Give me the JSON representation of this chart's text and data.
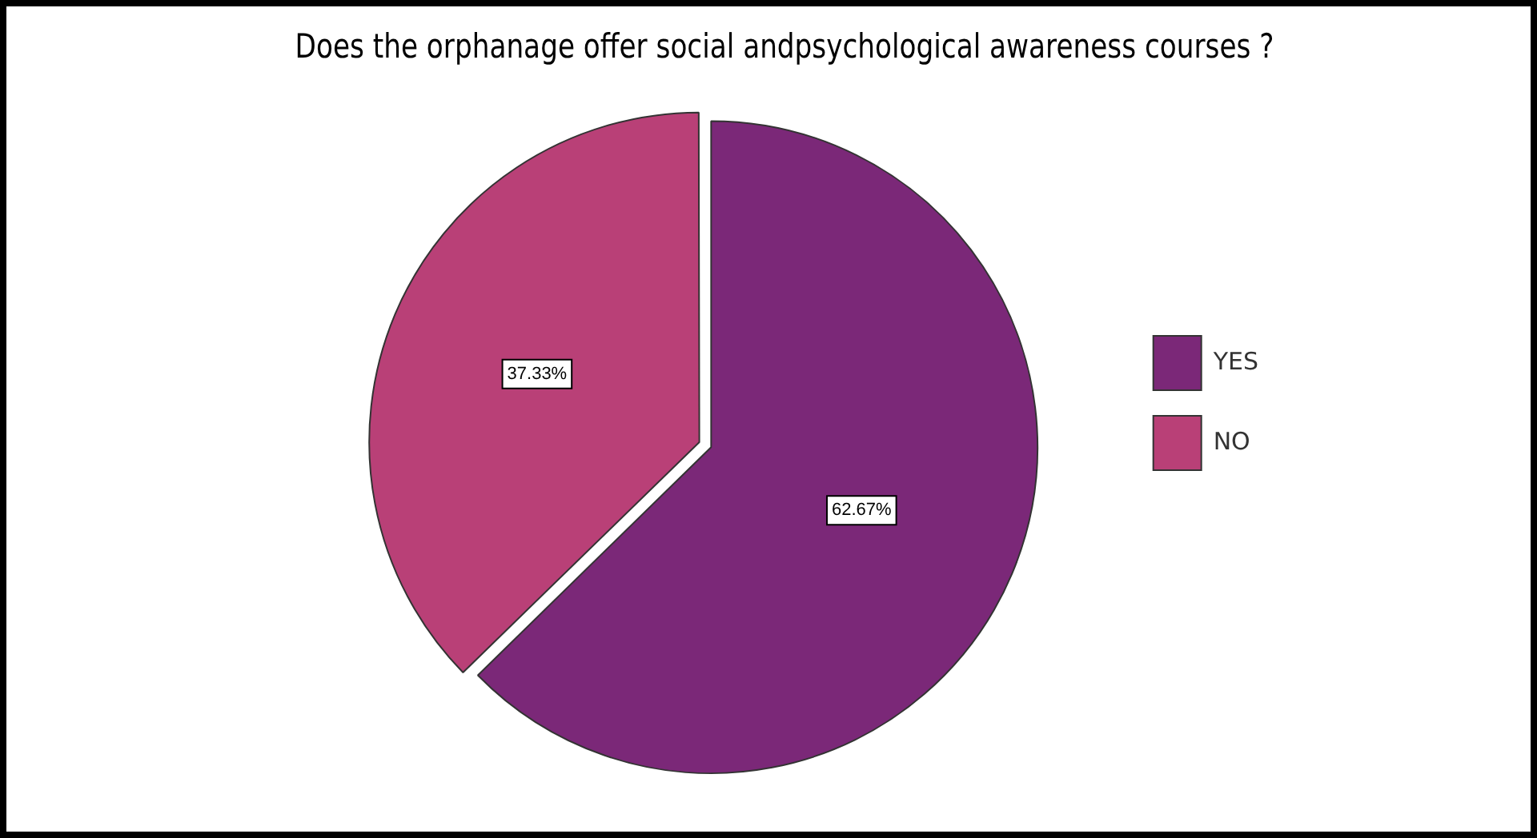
{
  "chart_data": {
    "type": "pie",
    "title": "Does the orphanage offer social andpsychological awareness courses ?",
    "categories": [
      "YES",
      "NO"
    ],
    "values": [
      62.67,
      37.33
    ],
    "colors": [
      "#7b2878",
      "#b94077"
    ],
    "value_labels": [
      "62.67%",
      "37.33%"
    ],
    "legend": "right"
  }
}
